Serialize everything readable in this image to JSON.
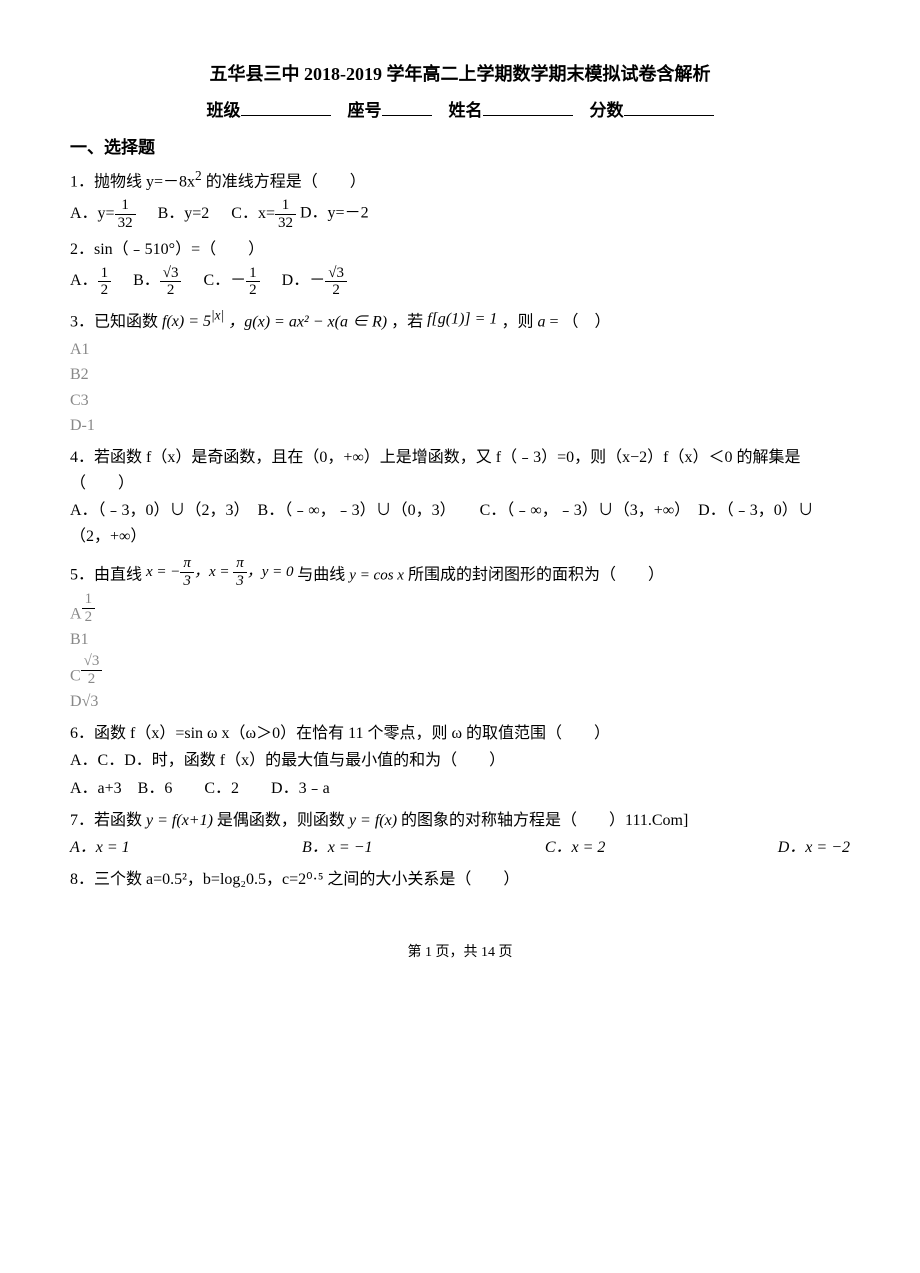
{
  "title": "五华县三中 2018-2019 学年高二上学期数学期末模拟试卷含解析",
  "header": {
    "class_label": "班级",
    "seat_label": "座号",
    "name_label": "姓名",
    "score_label": "分数"
  },
  "section1_heading": "一、选择题",
  "q1": {
    "text_pre": "1．抛物线 y=－8x",
    "sup": "2",
    "text_post": " 的准线方程是（　　）",
    "optA_pre": "A．y=",
    "optA_num": "1",
    "optA_den": "32",
    "optB": "B．y=2",
    "optC_pre": "C．x=",
    "optC_num": "1",
    "optC_den": "32",
    "optD": "D．y=－2"
  },
  "q2": {
    "text": "2．sin（﹣510°）=（　　）",
    "A_label": "A．",
    "A_num": "1",
    "A_den": "2",
    "B_label": "B．",
    "B_num": "√3",
    "B_den": "2",
    "C_label": "C．－",
    "C_num": "1",
    "C_den": "2",
    "D_label": "D．－",
    "D_num": "√3",
    "D_den": "2"
  },
  "q3": {
    "text_pre": "3．已知函数",
    "f1": "f(x) = 5",
    "f1_sup": "|x|",
    "g": "，g(x) = ax² − x(a ∈ R)",
    "mid": "，若",
    "cond": "f[g(1)] = 1",
    "post": "，则",
    "avar": "a",
    "eq": " = （　）",
    "A": "A1",
    "B": "B2",
    "C": "C3",
    "D": "D-1"
  },
  "q4": {
    "line1": "4．若函数 f（x）是奇函数，且在（0，+∞）上是增函数，又 f（﹣3）=0，则（x−2）f（x）＜0 的解集是（　　）",
    "opts": "A．（﹣3，0）∪（2，3）　B．（﹣∞，﹣3）∪（0，3）　　C．（﹣∞，﹣3）∪（3，+∞）　D．（﹣3，0）∪（2，+∞）"
  },
  "q5": {
    "pre": "5．由直线",
    "eq1_pre": "x = −",
    "eq1_num": "π",
    "eq1_den": "3",
    "eq2_pre": "，x = ",
    "eq2_num": "π",
    "eq2_den": "3",
    "eq3": "，y = 0",
    "mid": "与曲线",
    "curve": "y = cos x",
    "post": "所围成的封闭图形的面积为（　　）",
    "A_label": "A",
    "A_num": "1",
    "A_den": "2",
    "B": "B1",
    "C_label": "C",
    "C_num": "√3",
    "C_den": "2",
    "D_label": "D",
    "D_val": "√3"
  },
  "q6": {
    "line1": "6．函数 f（x）=sin ω x（ω＞0）在恰有 11 个零点，则 ω 的取值范围（　　）",
    "line2": "A．C．D．时，函数 f（x）的最大值与最小值的和为（　　）",
    "opts": "A．a+3　B．6　　C．2　　D．3﹣a"
  },
  "q7": {
    "pre": "7．若函数 ",
    "f1": "y = f(x+1)",
    "mid": " 是偶函数，则函数 ",
    "f2": "y = f(x)",
    "post": " 的图象的对称轴方程是（　　）111.Com]",
    "A": "A．x = 1",
    "B": "B．x = −1",
    "C": "C．x = 2",
    "D": "D．x = −2"
  },
  "q8": {
    "text": "8．三个数 a=0.5²，b=log₂0.5，c=2⁰·⁵ 之间的大小关系是（　　）"
  },
  "footer": "第 1 页，共 14 页"
}
